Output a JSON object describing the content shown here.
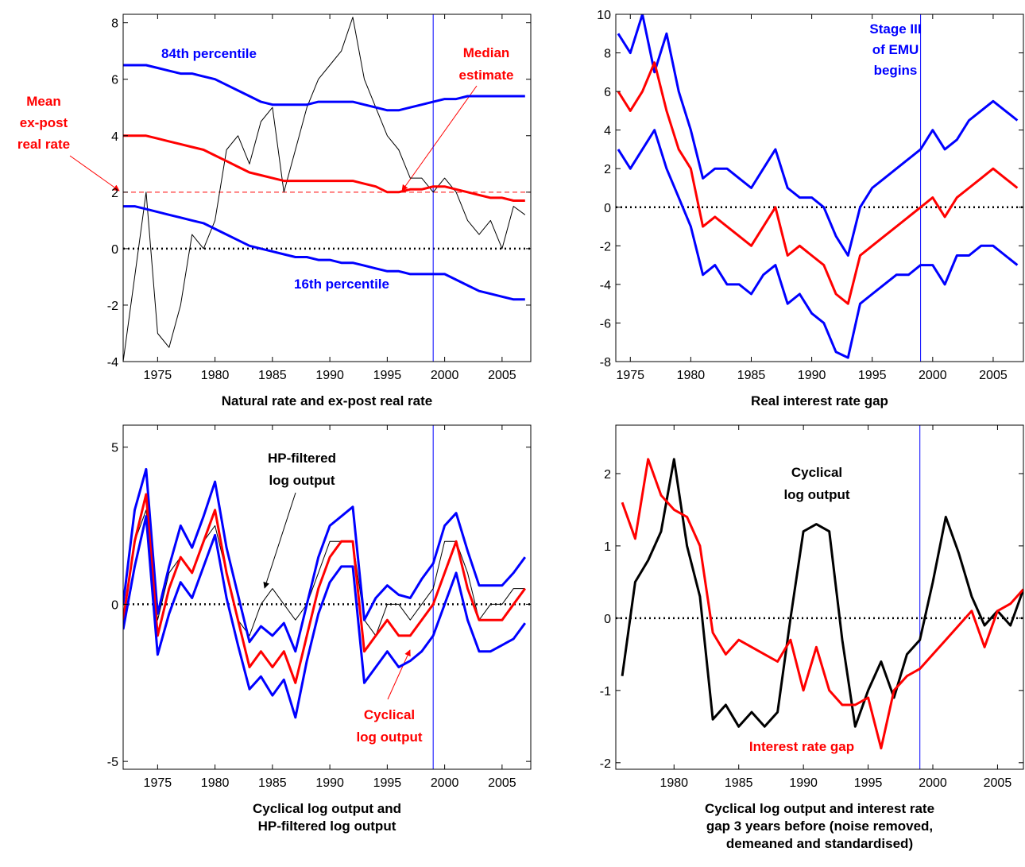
{
  "chart_data": [
    {
      "type": "line",
      "title": [
        "Natural rate and ex-post real rate"
      ],
      "x": [
        1972,
        1973,
        1974,
        1975,
        1976,
        1977,
        1978,
        1979,
        1980,
        1981,
        1982,
        1983,
        1984,
        1985,
        1986,
        1987,
        1988,
        1989,
        1990,
        1991,
        1992,
        1993,
        1994,
        1995,
        1996,
        1997,
        1998,
        1999,
        2000,
        2001,
        2002,
        2003,
        2004,
        2005,
        2006,
        2007
      ],
      "xlim": [
        1972,
        2007.5
      ],
      "xticks": [
        1975,
        1980,
        1985,
        1990,
        1995,
        2000,
        2005
      ],
      "ylim": [
        -4,
        8.3
      ],
      "yticks": [
        -4,
        -2,
        0,
        2,
        4,
        6,
        8
      ],
      "vline": 1999,
      "hlines": [
        {
          "value": 0,
          "color": "#000000",
          "style": "dotted"
        },
        {
          "value": 2,
          "color": "#ff0000",
          "style": "dashed"
        }
      ],
      "series": [
        {
          "color": "#000000",
          "values": [
            -4,
            -1,
            2,
            -3,
            -3.5,
            -2,
            0.5,
            0,
            1,
            3.5,
            4,
            3,
            4.5,
            5,
            2,
            3.5,
            5,
            6,
            6.5,
            7,
            8.2,
            6,
            5,
            4,
            3.5,
            2.5,
            2.5,
            2,
            2.5,
            2,
            1,
            0.5,
            1,
            0,
            1.5,
            1.2
          ]
        },
        {
          "color": "#0000ff",
          "values": [
            6.5,
            6.5,
            6.5,
            6.4,
            6.3,
            6.2,
            6.2,
            6.1,
            6.0,
            5.8,
            5.6,
            5.4,
            5.2,
            5.1,
            5.1,
            5.1,
            5.1,
            5.2,
            5.2,
            5.2,
            5.2,
            5.1,
            5.0,
            4.9,
            4.9,
            5.0,
            5.1,
            5.2,
            5.3,
            5.3,
            5.4,
            5.4,
            5.4,
            5.4,
            5.4,
            5.4
          ]
        },
        {
          "color": "#ff0000",
          "values": [
            4.0,
            4.0,
            4.0,
            3.9,
            3.8,
            3.7,
            3.6,
            3.5,
            3.3,
            3.1,
            2.9,
            2.7,
            2.6,
            2.5,
            2.4,
            2.4,
            2.4,
            2.4,
            2.4,
            2.4,
            2.4,
            2.3,
            2.2,
            2.0,
            2.0,
            2.1,
            2.1,
            2.2,
            2.2,
            2.1,
            2.0,
            1.9,
            1.8,
            1.8,
            1.7,
            1.7
          ]
        },
        {
          "color": "#0000ff",
          "values": [
            1.5,
            1.5,
            1.4,
            1.3,
            1.2,
            1.1,
            1.0,
            0.9,
            0.7,
            0.5,
            0.3,
            0.1,
            0.0,
            -0.1,
            -0.2,
            -0.3,
            -0.3,
            -0.4,
            -0.4,
            -0.5,
            -0.5,
            -0.6,
            -0.7,
            -0.8,
            -0.8,
            -0.9,
            -0.9,
            -0.9,
            -0.9,
            -1.1,
            -1.3,
            -1.5,
            -1.6,
            -1.7,
            -1.8,
            -1.8
          ]
        }
      ],
      "annotations": [
        {
          "text": [
            "84th percentile"
          ],
          "color": "#0000ff"
        },
        {
          "text": [
            "Median",
            "estimate"
          ],
          "color": "#ff0000"
        },
        {
          "text": [
            "Mean",
            "ex-post",
            "real rate"
          ],
          "color": "#ff0000"
        },
        {
          "text": [
            "16th percentile"
          ],
          "color": "#0000ff"
        }
      ]
    },
    {
      "type": "line",
      "title": [
        "Real interest rate gap"
      ],
      "x": [
        1974,
        1975,
        1976,
        1977,
        1978,
        1979,
        1980,
        1981,
        1982,
        1983,
        1984,
        1985,
        1986,
        1987,
        1988,
        1989,
        1990,
        1991,
        1992,
        1993,
        1994,
        1995,
        1996,
        1997,
        1998,
        1999,
        2000,
        2001,
        2002,
        2003,
        2004,
        2005,
        2006,
        2007
      ],
      "xlim": [
        1973.8,
        2007.5
      ],
      "xticks": [
        1975,
        1980,
        1985,
        1990,
        1995,
        2000,
        2005
      ],
      "ylim": [
        -8,
        10
      ],
      "yticks": [
        -8,
        -6,
        -4,
        -2,
        0,
        2,
        4,
        6,
        8,
        10
      ],
      "vline": 1999,
      "hlines": [
        {
          "value": 0,
          "color": "#000000",
          "style": "dotted"
        }
      ],
      "series": [
        {
          "color": "#0000ff",
          "values": [
            9,
            8,
            10,
            7,
            9,
            6,
            4,
            1.5,
            2,
            2,
            1.5,
            1,
            2,
            3,
            1,
            0.5,
            0.5,
            0,
            -1.5,
            -2.5,
            0,
            1,
            1.5,
            2,
            2.5,
            3,
            4,
            3,
            3.5,
            4.5,
            5,
            5.5,
            5,
            4.5
          ]
        },
        {
          "color": "#ff0000",
          "values": [
            6,
            5,
            6,
            7.5,
            5,
            3,
            2,
            -1,
            -0.5,
            -1,
            -1.5,
            -2,
            -1,
            0,
            -2.5,
            -2,
            -2.5,
            -3,
            -4.5,
            -5,
            -2.5,
            -2,
            -1.5,
            -1,
            -0.5,
            0,
            0.5,
            -0.5,
            0.5,
            1,
            1.5,
            2,
            1.5,
            1
          ]
        },
        {
          "color": "#0000ff",
          "values": [
            3,
            2,
            3,
            4,
            2,
            0.5,
            -1,
            -3.5,
            -3,
            -4,
            -4,
            -4.5,
            -3.5,
            -3,
            -5,
            -4.5,
            -5.5,
            -6,
            -7.5,
            -7.8,
            -5,
            -4.5,
            -4,
            -3.5,
            -3.5,
            -3,
            -3,
            -4,
            -2.5,
            -2.5,
            -2,
            -2,
            -2.5,
            -3
          ]
        }
      ],
      "annotations": [
        {
          "text": [
            "Stage III",
            "of EMU",
            "begins"
          ],
          "color": "#0000ff"
        }
      ]
    },
    {
      "type": "line",
      "title": [
        "Cyclical log output and",
        "HP-filtered log output"
      ],
      "x": [
        1972,
        1973,
        1974,
        1975,
        1976,
        1977,
        1978,
        1979,
        1980,
        1981,
        1982,
        1983,
        1984,
        1985,
        1986,
        1987,
        1988,
        1989,
        1990,
        1991,
        1992,
        1993,
        1994,
        1995,
        1996,
        1997,
        1998,
        1999,
        2000,
        2001,
        2002,
        2003,
        2004,
        2005,
        2006,
        2007
      ],
      "xlim": [
        1972,
        2007.5
      ],
      "xticks": [
        1975,
        1980,
        1985,
        1990,
        1995,
        2000,
        2005
      ],
      "ylim": [
        -5.25,
        5.7
      ],
      "yticks": [
        -5,
        0,
        5
      ],
      "vline": 1999,
      "hlines": [
        {
          "value": 0,
          "color": "#000000",
          "style": "dotted"
        }
      ],
      "series": [
        {
          "color": "#000000",
          "values": [
            -0.5,
            2,
            3,
            -0.5,
            1,
            1.5,
            1,
            2,
            2.5,
            1,
            -0.5,
            -1,
            0,
            0.5,
            0,
            -0.5,
            0,
            1,
            2,
            2,
            2,
            -0.5,
            -1,
            0,
            0,
            -0.5,
            0,
            0.5,
            2,
            2,
            1,
            -0.5,
            0,
            0,
            0.5,
            0.5
          ]
        },
        {
          "color": "#0000ff",
          "values": [
            0,
            3,
            4.3,
            -0.3,
            1.2,
            2.5,
            1.8,
            2.8,
            3.9,
            1.8,
            0.3,
            -1.2,
            -0.7,
            -1.0,
            -0.6,
            -1.5,
            0,
            1.5,
            2.5,
            2.8,
            3.1,
            -0.5,
            0.2,
            0.6,
            0.3,
            0.2,
            0.8,
            1.3,
            2.5,
            2.9,
            1.7,
            0.6,
            0.6,
            0.6,
            1.0,
            1.5
          ]
        },
        {
          "color": "#ff0000",
          "values": [
            -0.5,
            2,
            3.5,
            -1,
            0.5,
            1.5,
            1,
            2,
            3,
            1,
            -0.5,
            -2,
            -1.5,
            -2,
            -1.5,
            -2.5,
            -1,
            0.5,
            1.5,
            2,
            2,
            -1.5,
            -1,
            -0.5,
            -1,
            -1,
            -0.5,
            0,
            1,
            2,
            0.5,
            -0.5,
            -0.5,
            -0.5,
            0,
            0.5
          ]
        },
        {
          "color": "#0000ff",
          "values": [
            -0.8,
            1.2,
            2.8,
            -1.6,
            -0.3,
            0.7,
            0.2,
            1.2,
            2.2,
            0.2,
            -1.3,
            -2.7,
            -2.3,
            -2.9,
            -2.4,
            -3.6,
            -1.8,
            -0.3,
            0.7,
            1.2,
            1.2,
            -2.5,
            -2.0,
            -1.5,
            -2.0,
            -1.8,
            -1.5,
            -1.0,
            0.0,
            1.0,
            -0.5,
            -1.5,
            -1.5,
            -1.3,
            -1.1,
            -0.6
          ]
        }
      ],
      "annotations": [
        {
          "text": [
            "HP-filtered",
            "log output"
          ],
          "color": "#000000"
        },
        {
          "text": [
            "Cyclical",
            "log output"
          ],
          "color": "#ff0000"
        }
      ]
    },
    {
      "type": "line",
      "title": [
        "Cyclical log output and interest rate",
        "gap 3 years before (noise removed,",
        "demeaned and standardised)"
      ],
      "x": [
        1976,
        1977,
        1978,
        1979,
        1980,
        1981,
        1982,
        1983,
        1984,
        1985,
        1986,
        1987,
        1988,
        1989,
        1990,
        1991,
        1992,
        1993,
        1994,
        1995,
        1996,
        1997,
        1998,
        1999,
        2000,
        2001,
        2002,
        2003,
        2004,
        2005,
        2006,
        2007
      ],
      "xlim": [
        1975.5,
        2007
      ],
      "xticks": [
        1980,
        1985,
        1990,
        1995,
        2000,
        2005
      ],
      "ylim": [
        -2.09,
        2.67
      ],
      "yticks": [
        -2,
        -1,
        0,
        1,
        2
      ],
      "vline": 1999,
      "hlines": [
        {
          "value": 0,
          "color": "#000000",
          "style": "dotted"
        }
      ],
      "series": [
        {
          "color": "#000000",
          "values": [
            -0.8,
            0.5,
            0.8,
            1.2,
            2.2,
            1.0,
            0.3,
            -1.4,
            -1.2,
            -1.5,
            -1.3,
            -1.5,
            -1.3,
            0.0,
            1.2,
            1.3,
            1.2,
            -0.3,
            -1.5,
            -1.0,
            -0.6,
            -1.1,
            -0.5,
            -0.3,
            0.5,
            1.4,
            0.9,
            0.3,
            -0.1,
            0.1,
            -0.1,
            0.4
          ]
        },
        {
          "color": "#ff0000",
          "values": [
            1.6,
            1.1,
            2.2,
            1.7,
            1.5,
            1.4,
            1.0,
            -0.2,
            -0.5,
            -0.3,
            -0.4,
            -0.5,
            -0.6,
            -0.3,
            -1.0,
            -0.4,
            -1.0,
            -1.2,
            -1.2,
            -1.1,
            -1.8,
            -1.0,
            -0.8,
            -0.7,
            -0.5,
            -0.3,
            -0.1,
            0.1,
            -0.4,
            0.1,
            0.2,
            0.4
          ]
        }
      ],
      "annotations": [
        {
          "text": [
            "Cyclical",
            "log output"
          ],
          "color": "#000000"
        },
        {
          "text": [
            "Interest rate gap"
          ],
          "color": "#ff0000"
        }
      ]
    }
  ]
}
